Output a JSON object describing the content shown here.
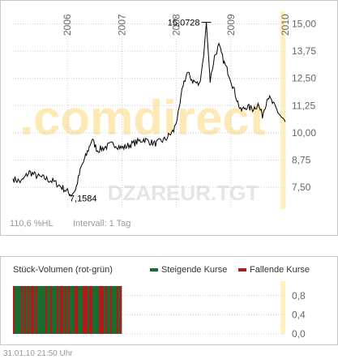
{
  "watermark": {
    "brand": ".comdirect",
    "symbol": "DZAREUR.TGT"
  },
  "info": {
    "range_label": "110,6 %HL",
    "interval_label": "Intervall: 1 Tag"
  },
  "footer": {
    "timestamp": "31.01.10   21:50 Uhr"
  },
  "chart_data": [
    {
      "type": "line",
      "name": "price-chart",
      "x_ticks": [
        "2006",
        "2007",
        "2008",
        "2009",
        "2010"
      ],
      "y_ticks": [
        "15,00",
        "13,75",
        "12,50",
        "11,25",
        "10,00",
        "8,75",
        "7,50"
      ],
      "ylim": [
        6.5,
        15.8
      ],
      "xlim": [
        2005.0,
        2010.0
      ],
      "grid": true,
      "annotations": [
        {
          "label": "15,0728",
          "x": 2008.55,
          "y": 15.0728
        },
        {
          "label": "7,1584",
          "x": 2006.07,
          "y": 7.1584
        }
      ],
      "anchors": [
        [
          2005.0,
          7.9
        ],
        [
          2005.15,
          7.75
        ],
        [
          2005.3,
          8.2
        ],
        [
          2005.45,
          8.0
        ],
        [
          2005.6,
          7.9
        ],
        [
          2005.75,
          7.75
        ],
        [
          2005.9,
          7.5
        ],
        [
          2006.0,
          7.3
        ],
        [
          2006.07,
          7.16
        ],
        [
          2006.15,
          7.4
        ],
        [
          2006.25,
          8.4
        ],
        [
          2006.35,
          9.0
        ],
        [
          2006.45,
          9.7
        ],
        [
          2006.55,
          9.2
        ],
        [
          2006.7,
          9.35
        ],
        [
          2006.85,
          9.5
        ],
        [
          2007.0,
          9.3
        ],
        [
          2007.2,
          9.5
        ],
        [
          2007.4,
          9.7
        ],
        [
          2007.6,
          9.5
        ],
        [
          2007.8,
          9.7
        ],
        [
          2007.95,
          10.1
        ],
        [
          2008.05,
          11.0
        ],
        [
          2008.12,
          12.2
        ],
        [
          2008.2,
          12.75
        ],
        [
          2008.3,
          12.4
        ],
        [
          2008.42,
          12.2
        ],
        [
          2008.5,
          13.5
        ],
        [
          2008.55,
          15.07
        ],
        [
          2008.62,
          12.4
        ],
        [
          2008.7,
          13.5
        ],
        [
          2008.78,
          14.0
        ],
        [
          2008.88,
          13.2
        ],
        [
          2008.98,
          12.6
        ],
        [
          2009.08,
          11.8
        ],
        [
          2009.18,
          11.0
        ],
        [
          2009.28,
          11.2
        ],
        [
          2009.4,
          11.1
        ],
        [
          2009.5,
          11.3
        ],
        [
          2009.58,
          10.8
        ],
        [
          2009.68,
          11.7
        ],
        [
          2009.78,
          11.3
        ],
        [
          2009.88,
          10.9
        ],
        [
          2009.96,
          10.6
        ],
        [
          2010.0,
          10.5
        ]
      ]
    },
    {
      "type": "bar",
      "name": "volume-chart",
      "title": "Stück-Volumen (rot-grün)",
      "legend": [
        {
          "label": "Steigende Kurse",
          "color": "#1a6b2e"
        },
        {
          "label": "Fallende Kurse",
          "color": "#b3191c"
        }
      ],
      "y_ticks": [
        "0,8",
        "0,4",
        "0,0"
      ],
      "ylim": [
        0,
        1.05
      ],
      "xlim": [
        2005.0,
        2010.0
      ],
      "bars_end_x": 2007.0,
      "bar_value": 1.0
    }
  ],
  "colors": {
    "line": "#000000",
    "grid": "#cccccc",
    "axis_text": "#666666",
    "info_text": "#999999",
    "watermark_brand": "#fde9b5",
    "watermark_symbol": "#e5e5e5",
    "highlight_band": "#fff2bf",
    "rising": "#1a6b2e",
    "falling": "#b3191c"
  }
}
